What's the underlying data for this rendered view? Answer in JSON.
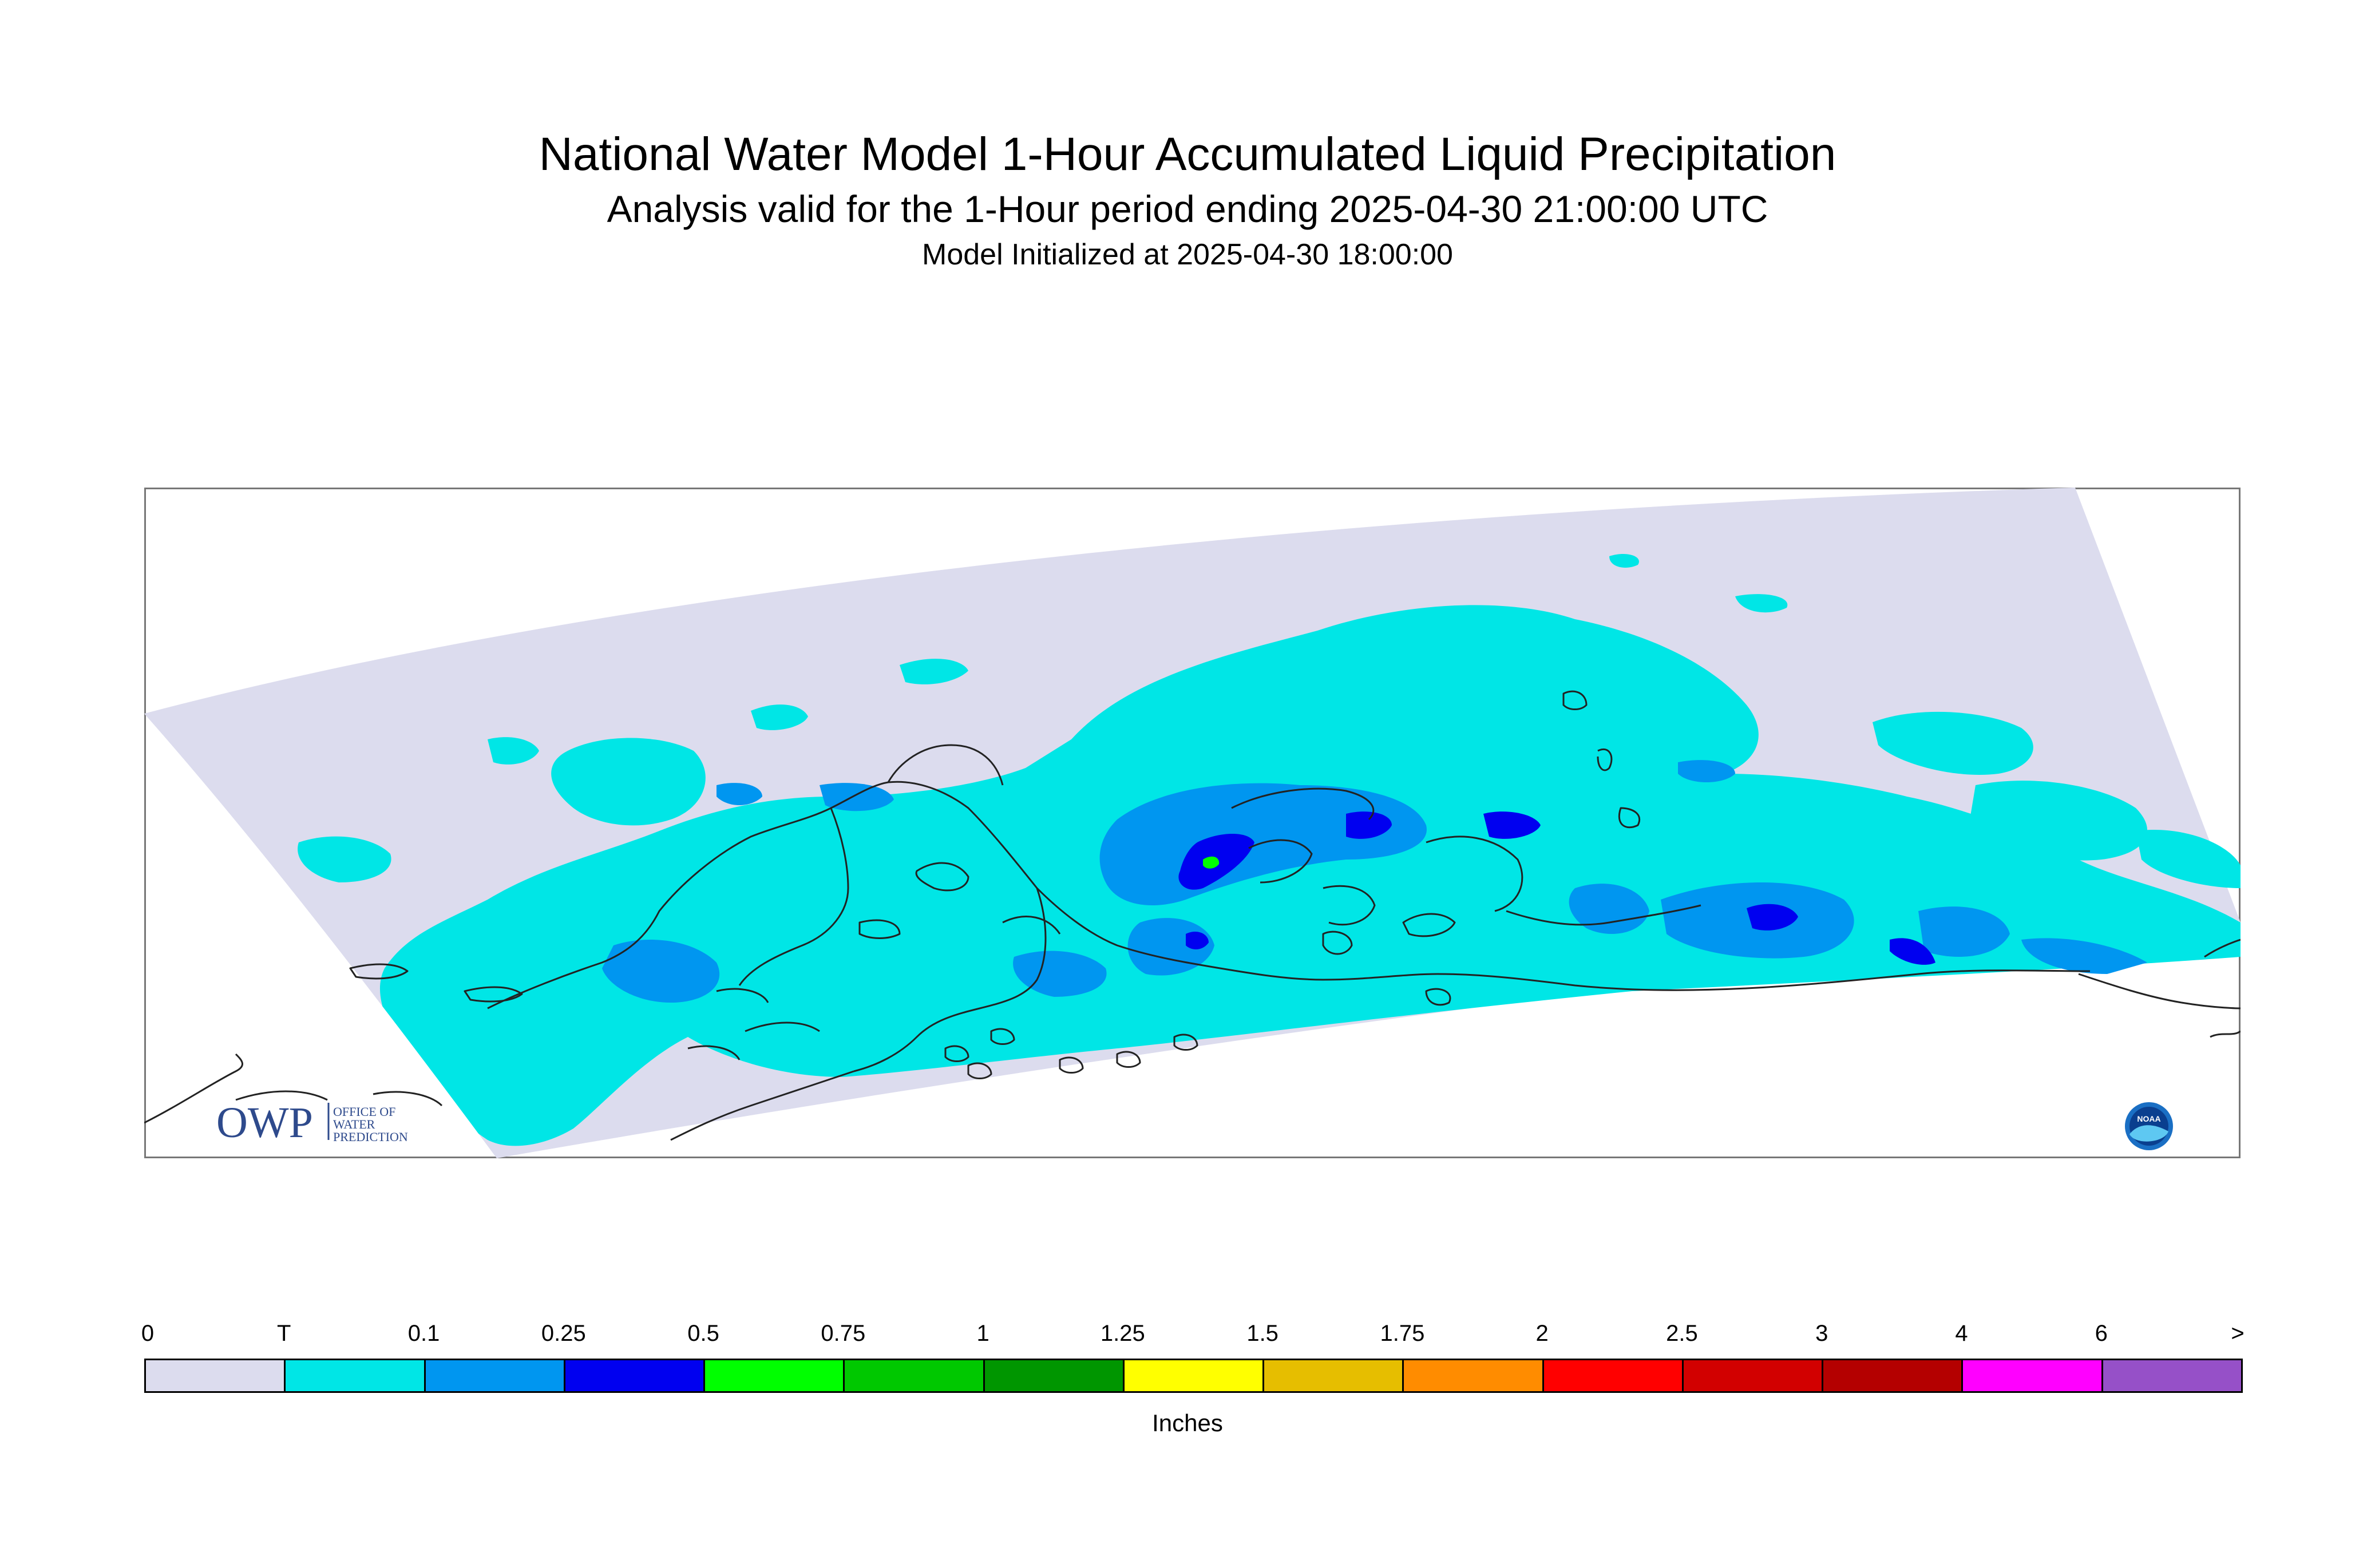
{
  "header": {
    "title": "National Water Model 1-Hour Accumulated Liquid Precipitation",
    "subtitle": "Analysis valid for the 1-Hour period ending 2025-04-30 21:00:00 UTC",
    "init": "Model Initialized at 2025-04-30 18:00:00"
  },
  "map": {
    "region_fill_color": "#dcdcee",
    "coastline_color": "#222222",
    "logos": {
      "owp_text": "OWP",
      "owp_sub": [
        "OFFICE OF",
        "WATER",
        "PREDICTION"
      ],
      "noaa_text": "NOAA"
    }
  },
  "legend": {
    "tick_labels": [
      "0",
      "T",
      "0.1",
      "0.25",
      "0.5",
      "0.75",
      "1",
      "1.25",
      "1.5",
      "1.75",
      "2",
      "2.5",
      "3",
      "4",
      "6",
      ">"
    ],
    "colors": [
      "#dcdcee",
      "#00e6e6",
      "#0096f0",
      "#0000f0",
      "#00ff00",
      "#00c800",
      "#009600",
      "#ffff00",
      "#e6be00",
      "#ff8c00",
      "#ff0000",
      "#d20000",
      "#b40000",
      "#ff00ff",
      "#9650c8"
    ],
    "units": "Inches"
  }
}
